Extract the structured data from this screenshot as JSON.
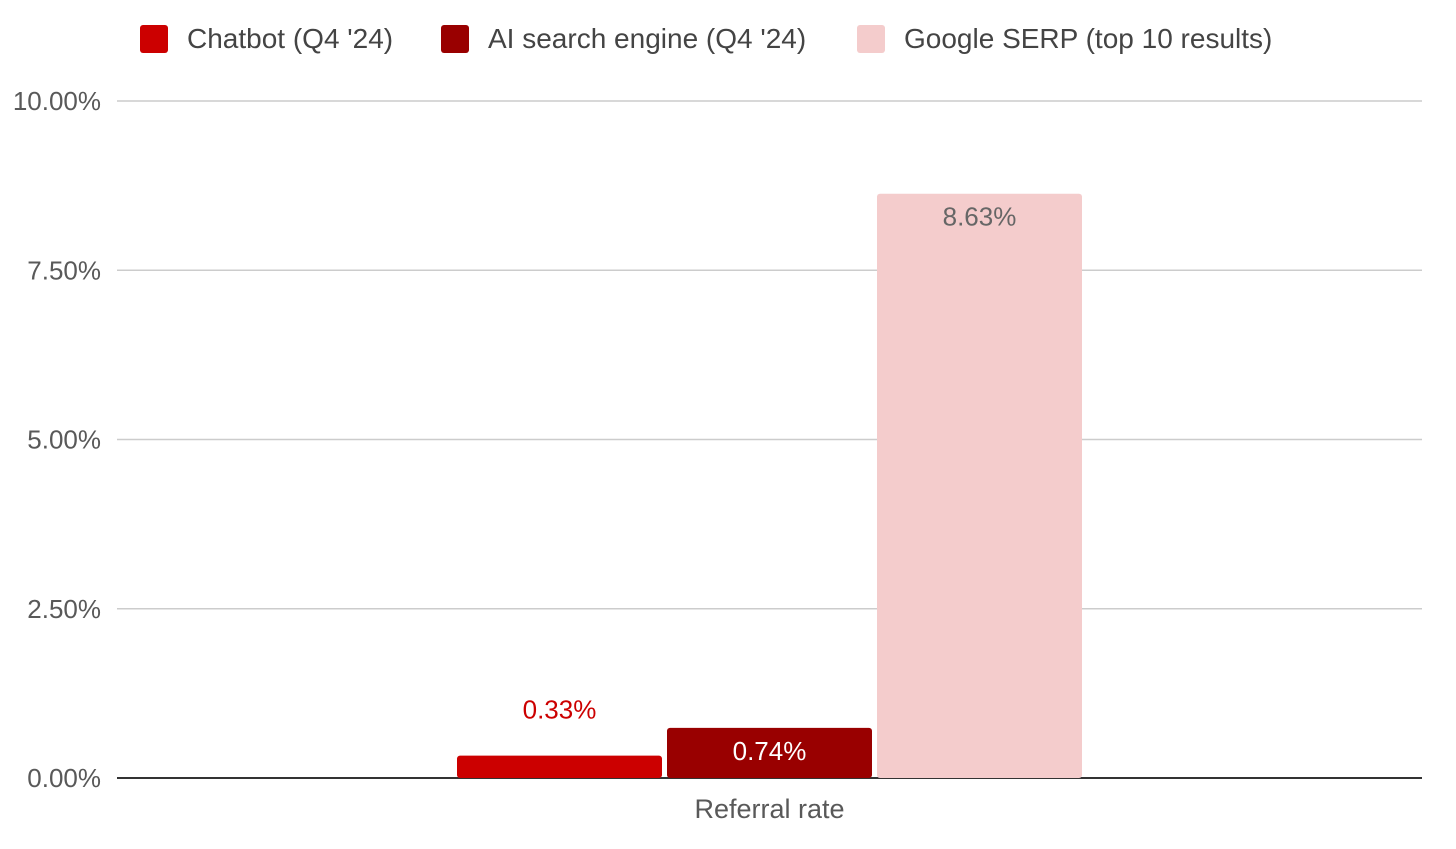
{
  "chart_data": {
    "type": "bar",
    "categories": [
      "Referral rate"
    ],
    "series": [
      {
        "name": "Chatbot (Q4 '24)",
        "values": [
          0.33
        ],
        "color": "#cc0000",
        "label_color": "#cc0000",
        "value_label": "0.33%"
      },
      {
        "name": "AI search engine (Q4 '24)",
        "values": [
          0.74
        ],
        "color": "#990000",
        "label_color": "#ffffff",
        "value_label": "0.74%"
      },
      {
        "name": "Google SERP (top 10 results)",
        "values": [
          8.63
        ],
        "color": "#f4cccc",
        "label_color": "#666666",
        "value_label": "8.63%"
      }
    ],
    "ylim": [
      0,
      10
    ],
    "y_ticks": [
      0,
      2.5,
      5,
      7.5,
      10
    ],
    "y_tick_labels": [
      "0.00%",
      "2.50%",
      "5.00%",
      "7.50%",
      "10.00%"
    ],
    "grid": true,
    "legend_position": "top",
    "colors": {
      "gridline": "#cccccc",
      "baseline": "#333333"
    }
  }
}
